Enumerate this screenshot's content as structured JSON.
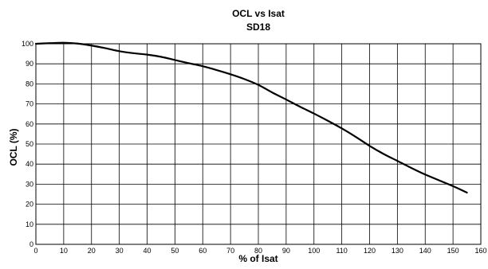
{
  "chart_data": {
    "type": "line",
    "title": "OCL vs Isat",
    "subtitle": "SD18",
    "xlabel": "% of Isat",
    "ylabel": "OCL (%)",
    "xlim": [
      0,
      160
    ],
    "ylim": [
      0,
      100
    ],
    "x_ticks": [
      "0",
      "10",
      "20",
      "30",
      "40",
      "50",
      "60",
      "70",
      "80",
      "90",
      "100",
      "110",
      "120",
      "130",
      "140",
      "150",
      "160"
    ],
    "y_ticks": [
      "0",
      "10",
      "20",
      "30",
      "40",
      "50",
      "60",
      "70",
      "80",
      "90",
      "100"
    ],
    "grid": true,
    "legend": "none",
    "line_color": "#000000",
    "series": [
      {
        "x": [
          0,
          5,
          10,
          15,
          20,
          25,
          30,
          35,
          40,
          45,
          50,
          55,
          60,
          65,
          70,
          75,
          80,
          85,
          90,
          95,
          100,
          105,
          110,
          115,
          120,
          125,
          130,
          135,
          140,
          145,
          150,
          155
        ],
        "y": [
          100,
          100.3,
          100.5,
          100.1,
          99.1,
          97.8,
          96.3,
          95.3,
          94.6,
          93.5,
          91.9,
          90.3,
          88.8,
          86.9,
          84.8,
          82.4,
          79.5,
          75.7,
          72.2,
          68.6,
          65.2,
          61.6,
          57.8,
          53.6,
          49.1,
          45.1,
          41.6,
          38.1,
          34.8,
          31.9,
          29.0,
          25.8
        ]
      }
    ]
  }
}
